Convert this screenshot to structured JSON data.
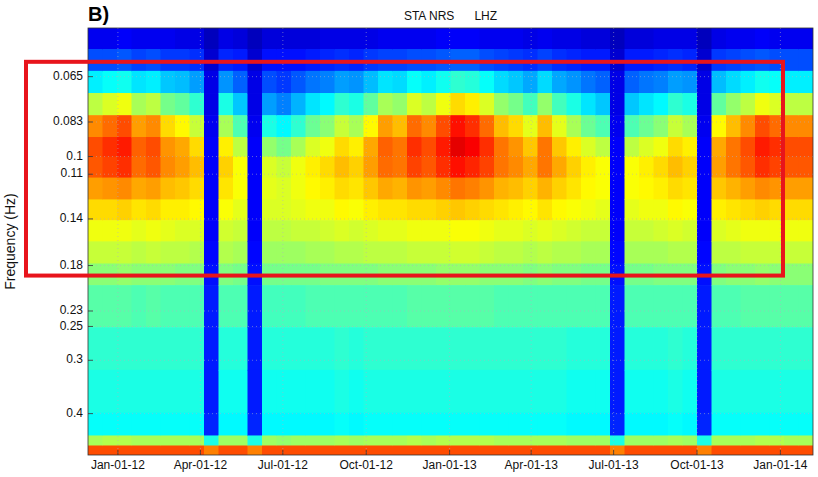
{
  "chart_data": {
    "type": "heatmap",
    "panel_label": "B)",
    "title": "STA NRS      LHZ",
    "ylabel": "Frequency (Hz)",
    "log": "y",
    "grid": true,
    "xlim": [
      -33,
      767
    ],
    "xticks": [
      {
        "value": 0,
        "label": "Jan-01-12"
      },
      {
        "value": 91,
        "label": "Apr-01-12"
      },
      {
        "value": 182,
        "label": "Jul-01-12"
      },
      {
        "value": 274,
        "label": "Oct-01-12"
      },
      {
        "value": 366,
        "label": "Jan-01-13"
      },
      {
        "value": 456,
        "label": "Apr-01-13"
      },
      {
        "value": 547,
        "label": "Jul-01-13"
      },
      {
        "value": 639,
        "label": "Oct-01-13"
      },
      {
        "value": 731,
        "label": "Jan-01-14"
      }
    ],
    "ylim": [
      0.5,
      0.05
    ],
    "yticks": [
      0.065,
      0.083,
      0.1,
      0.11,
      0.14,
      0.18,
      0.23,
      0.25,
      0.3,
      0.4
    ],
    "highlight_band": [
      0.06,
      0.19
    ],
    "zlim": [
      0,
      100
    ],
    "x_edges": [
      -33,
      -17,
      -1,
      15,
      31,
      47,
      63,
      79,
      95,
      111,
      127,
      143,
      159,
      175,
      191,
      207,
      223,
      239,
      255,
      271,
      287,
      303,
      319,
      335,
      351,
      367,
      383,
      399,
      415,
      431,
      447,
      463,
      479,
      495,
      511,
      527,
      543,
      559,
      575,
      591,
      607,
      623,
      639,
      655,
      671,
      687,
      703,
      719,
      735,
      751,
      767
    ],
    "y_edges": [
      0.05,
      0.056,
      0.063,
      0.071,
      0.08,
      0.09,
      0.1,
      0.112,
      0.126,
      0.141,
      0.158,
      0.178,
      0.2,
      0.251,
      0.316,
      0.398,
      0.45,
      0.475,
      0.5
    ],
    "z": [
      [
        11,
        20,
        36,
        56,
        74,
        80,
        79,
        72,
        66,
        61,
        57,
        51,
        46,
        42,
        40,
        38,
        54,
        80
      ],
      [
        11,
        20,
        38,
        59,
        77,
        83,
        81,
        73,
        66,
        61,
        57,
        51,
        46,
        42,
        40,
        38,
        55,
        80
      ],
      [
        12,
        21,
        39,
        61,
        80,
        85,
        83,
        74,
        67,
        61,
        57,
        52,
        46,
        42,
        40,
        38,
        55,
        80
      ],
      [
        11,
        19,
        35,
        54,
        72,
        78,
        77,
        71,
        65,
        60,
        56,
        51,
        45,
        42,
        40,
        38,
        54,
        80
      ],
      [
        11,
        20,
        36,
        56,
        74,
        80,
        79,
        72,
        66,
        61,
        57,
        51,
        46,
        42,
        40,
        38,
        54,
        80
      ],
      [
        11,
        18,
        32,
        49,
        66,
        73,
        74,
        69,
        64,
        60,
        56,
        51,
        45,
        42,
        40,
        38,
        54,
        80
      ],
      [
        10,
        18,
        31,
        47,
        63,
        71,
        72,
        68,
        64,
        59,
        56,
        50,
        45,
        42,
        40,
        38,
        54,
        80
      ],
      [
        10,
        17,
        28,
        42,
        57,
        66,
        69,
        66,
        63,
        59,
        55,
        50,
        45,
        42,
        40,
        38,
        54,
        80
      ],
      [
        6,
        8,
        10,
        10,
        11,
        12,
        12,
        12,
        12,
        12,
        13,
        14,
        15,
        15,
        15,
        16,
        40,
        75
      ],
      [
        10,
        16,
        27,
        40,
        54,
        64,
        67,
        65,
        62,
        58,
        55,
        50,
        45,
        41,
        39,
        37,
        53,
        80
      ],
      [
        9,
        15,
        22,
        32,
        45,
        56,
        62,
        62,
        60,
        57,
        54,
        49,
        45,
        41,
        39,
        37,
        53,
        80
      ],
      [
        6,
        8,
        10,
        10,
        11,
        12,
        12,
        12,
        12,
        12,
        13,
        14,
        15,
        15,
        15,
        16,
        40,
        75
      ],
      [
        9,
        14,
        20,
        28,
        40,
        52,
        59,
        60,
        59,
        56,
        53,
        49,
        44,
        41,
        39,
        37,
        53,
        80
      ],
      [
        9,
        14,
        18,
        25,
        37,
        49,
        57,
        59,
        59,
        56,
        53,
        49,
        44,
        41,
        39,
        37,
        52,
        80
      ],
      [
        9,
        14,
        21,
        30,
        42,
        54,
        61,
        61,
        60,
        57,
        53,
        49,
        44,
        41,
        39,
        37,
        53,
        80
      ],
      [
        9,
        15,
        24,
        35,
        48,
        59,
        64,
        63,
        61,
        57,
        54,
        49,
        45,
        41,
        39,
        37,
        53,
        80
      ],
      [
        10,
        16,
        25,
        37,
        51,
        61,
        66,
        64,
        61,
        58,
        54,
        50,
        45,
        41,
        39,
        37,
        53,
        80
      ],
      [
        10,
        17,
        28,
        42,
        57,
        66,
        69,
        66,
        63,
        59,
        55,
        50,
        45,
        42,
        40,
        38,
        54,
        80
      ],
      [
        10,
        16,
        27,
        40,
        54,
        64,
        67,
        65,
        62,
        58,
        55,
        50,
        45,
        41,
        39,
        37,
        53,
        80
      ],
      [
        10,
        18,
        31,
        47,
        63,
        71,
        72,
        68,
        64,
        59,
        56,
        50,
        45,
        42,
        40,
        38,
        54,
        80
      ],
      [
        11,
        19,
        35,
        54,
        72,
        78,
        77,
        71,
        65,
        60,
        56,
        51,
        45,
        42,
        40,
        38,
        54,
        80
      ],
      [
        11,
        19,
        34,
        52,
        69,
        76,
        76,
        70,
        65,
        60,
        56,
        51,
        45,
        42,
        40,
        38,
        54,
        80
      ],
      [
        11,
        20,
        38,
        59,
        77,
        83,
        81,
        73,
        66,
        61,
        57,
        51,
        46,
        42,
        40,
        38,
        55,
        80
      ],
      [
        11,
        20,
        36,
        56,
        74,
        80,
        79,
        72,
        66,
        61,
        57,
        51,
        46,
        42,
        40,
        38,
        54,
        80
      ],
      [
        12,
        21,
        39,
        61,
        80,
        85,
        83,
        74,
        67,
        61,
        57,
        52,
        46,
        42,
        40,
        38,
        55,
        80
      ],
      [
        12,
        22,
        42,
        66,
        86,
        90,
        86,
        76,
        68,
        62,
        58,
        52,
        46,
        42,
        40,
        38,
        55,
        80
      ],
      [
        12,
        22,
        41,
        64,
        83,
        88,
        84,
        75,
        67,
        62,
        58,
        52,
        46,
        42,
        40,
        38,
        55,
        80
      ],
      [
        11,
        20,
        38,
        59,
        77,
        83,
        81,
        73,
        66,
        61,
        57,
        51,
        46,
        42,
        40,
        38,
        55,
        80
      ],
      [
        11,
        19,
        34,
        52,
        69,
        76,
        76,
        70,
        65,
        60,
        56,
        51,
        45,
        42,
        40,
        38,
        54,
        80
      ],
      [
        11,
        18,
        32,
        49,
        66,
        73,
        74,
        69,
        64,
        60,
        56,
        51,
        45,
        42,
        40,
        38,
        54,
        80
      ],
      [
        10,
        17,
        29,
        44,
        60,
        68,
        71,
        67,
        63,
        59,
        55,
        50,
        45,
        42,
        40,
        38,
        54,
        80
      ],
      [
        11,
        19,
        34,
        52,
        69,
        76,
        76,
        70,
        65,
        60,
        56,
        51,
        45,
        42,
        40,
        38,
        54,
        80
      ],
      [
        10,
        17,
        29,
        44,
        60,
        68,
        71,
        67,
        63,
        59,
        55,
        50,
        45,
        42,
        40,
        38,
        54,
        80
      ],
      [
        10,
        16,
        27,
        40,
        54,
        64,
        67,
        65,
        62,
        58,
        55,
        50,
        45,
        41,
        39,
        37,
        53,
        80
      ],
      [
        9,
        15,
        24,
        35,
        48,
        59,
        64,
        63,
        61,
        57,
        54,
        49,
        45,
        41,
        39,
        37,
        53,
        80
      ],
      [
        9,
        15,
        22,
        32,
        45,
        56,
        62,
        62,
        60,
        57,
        54,
        49,
        45,
        41,
        39,
        37,
        53,
        80
      ],
      [
        6,
        8,
        10,
        10,
        11,
        12,
        12,
        12,
        12,
        12,
        13,
        14,
        15,
        15,
        15,
        16,
        40,
        75
      ],
      [
        9,
        15,
        22,
        32,
        45,
        56,
        62,
        62,
        60,
        57,
        54,
        49,
        45,
        41,
        39,
        37,
        53,
        80
      ],
      [
        9,
        15,
        24,
        35,
        48,
        59,
        64,
        63,
        61,
        57,
        54,
        49,
        45,
        41,
        39,
        37,
        53,
        80
      ],
      [
        10,
        16,
        25,
        37,
        51,
        61,
        66,
        64,
        61,
        58,
        54,
        50,
        45,
        41,
        39,
        37,
        53,
        80
      ],
      [
        10,
        17,
        28,
        42,
        57,
        66,
        69,
        66,
        63,
        59,
        55,
        50,
        45,
        42,
        40,
        38,
        54,
        80
      ],
      [
        10,
        16,
        27,
        40,
        54,
        64,
        67,
        65,
        62,
        58,
        55,
        50,
        45,
        41,
        39,
        37,
        53,
        80
      ],
      [
        6,
        8,
        10,
        10,
        11,
        12,
        12,
        12,
        12,
        12,
        13,
        14,
        15,
        15,
        15,
        16,
        40,
        75
      ],
      [
        10,
        18,
        31,
        47,
        63,
        71,
        72,
        68,
        64,
        59,
        56,
        50,
        45,
        42,
        40,
        38,
        54,
        80
      ],
      [
        11,
        19,
        34,
        52,
        69,
        76,
        76,
        70,
        65,
        60,
        56,
        51,
        45,
        42,
        40,
        38,
        54,
        80
      ],
      [
        11,
        20,
        36,
        56,
        74,
        80,
        79,
        72,
        66,
        61,
        57,
        51,
        46,
        42,
        40,
        38,
        54,
        80
      ],
      [
        12,
        21,
        39,
        61,
        80,
        85,
        83,
        74,
        67,
        61,
        57,
        52,
        46,
        42,
        40,
        38,
        55,
        80
      ],
      [
        11,
        20,
        38,
        59,
        77,
        83,
        81,
        73,
        66,
        61,
        57,
        51,
        46,
        42,
        40,
        38,
        55,
        80
      ],
      [
        11,
        20,
        36,
        56,
        74,
        80,
        79,
        72,
        66,
        61,
        57,
        51,
        46,
        42,
        40,
        38,
        54,
        80
      ],
      [
        11,
        20,
        36,
        56,
        74,
        80,
        79,
        72,
        66,
        61,
        57,
        51,
        46,
        42,
        40,
        38,
        54,
        80
      ]
    ]
  }
}
